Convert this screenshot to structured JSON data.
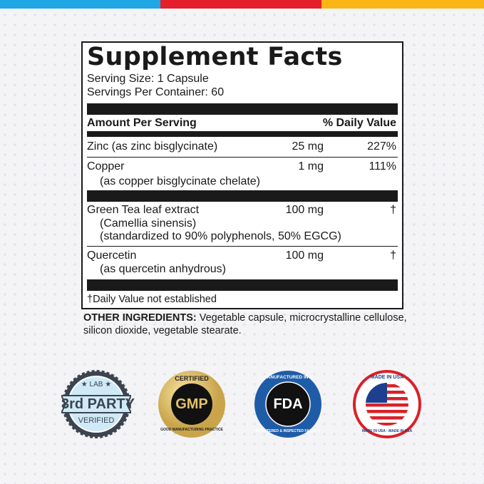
{
  "colors": {
    "blue": "#1ea7e4",
    "red": "#e41e2b",
    "yellow": "#fbb616"
  },
  "facts": {
    "title": "Supplement Facts",
    "serving_size": "Serving Size: 1 Capsule",
    "servings_per_container": "Servings Per Container: 60",
    "header_left": "Amount Per Serving",
    "header_right": "% Daily Value",
    "rows": [
      {
        "name": "Zinc (as zinc bisglycinate)",
        "amount": "25 mg",
        "dv": "227%"
      },
      {
        "name": "Copper",
        "sub": [
          "(as copper bisglycinate chelate)"
        ],
        "amount": "1 mg",
        "dv": "111%"
      },
      {
        "name": "Green Tea leaf extract",
        "sub": [
          "(Camellia sinensis)",
          "(standardized to 90% polyphenols, 50% EGCG)"
        ],
        "amount": "100 mg",
        "dv": "†"
      },
      {
        "name": "Quercetin",
        "sub": [
          "(as quercetin anhydrous)"
        ],
        "amount": "100 mg",
        "dv": "†"
      }
    ],
    "footnote": "†Daily Value not established"
  },
  "other_ingredients": {
    "label": "OTHER INGREDIENTS:",
    "text": " Vegetable capsule, microcrystalline cellulose, silicon dioxide, vegetable stearate."
  },
  "badges": [
    {
      "icon": "lab-verified-seal",
      "top": "★ LAB ★",
      "main": "3rd PARTY",
      "bottom": "VERIFIED"
    },
    {
      "icon": "gmp-seal",
      "top": "CERTIFIED",
      "main": "GMP",
      "bottom": "GOOD MANUFACTURING PRACTICE"
    },
    {
      "icon": "fda-seal",
      "top": "MANUFACTURED IN A",
      "main": "FDA",
      "bottom": "REGISTERED & INSPECTED FACILITY"
    },
    {
      "icon": "usa-flag-seal",
      "top": "MADE IN USA",
      "main": "",
      "bottom": "MADE IN USA · MADE IN USA"
    }
  ]
}
